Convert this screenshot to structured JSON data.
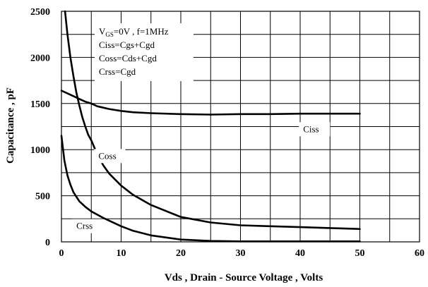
{
  "chart_data": {
    "type": "line",
    "xlabel": "Vds , Drain - Source Voltage , Volts",
    "ylabel": "Capacitance , pF",
    "xlim": [
      0,
      60
    ],
    "ylim": [
      0,
      2500
    ],
    "x_ticks": [
      "0",
      "10",
      "20",
      "30",
      "40",
      "50",
      "60"
    ],
    "y_ticks": [
      "0",
      "500",
      "1000",
      "1500",
      "2000",
      "2500"
    ],
    "grid": true,
    "annotations": {
      "line1_main": "V",
      "line1_sub": "GS",
      "line1_rest": "=0V , f=1MHz",
      "line2": "Ciss=Cgs+Cgd",
      "line3": "Coss=Cds+Cgd",
      "line4": "Crss=Cgd"
    },
    "series": [
      {
        "name": "Ciss",
        "x": [
          0,
          1,
          2,
          3,
          4,
          5,
          6,
          8,
          10,
          12,
          15,
          20,
          25,
          30,
          35,
          40,
          45,
          50
        ],
        "y": [
          1640,
          1610,
          1580,
          1550,
          1520,
          1500,
          1470,
          1440,
          1420,
          1405,
          1395,
          1385,
          1380,
          1385,
          1385,
          1390,
          1390,
          1390
        ]
      },
      {
        "name": "Coss",
        "x": [
          0.6,
          1,
          1.5,
          2,
          2.5,
          3,
          3.5,
          4,
          4.5,
          5,
          6,
          7,
          8,
          10,
          12,
          15,
          20,
          25,
          30,
          35,
          40,
          45,
          50
        ],
        "y": [
          2500,
          2250,
          2000,
          1800,
          1620,
          1480,
          1350,
          1250,
          1160,
          1100,
          950,
          830,
          740,
          610,
          510,
          400,
          270,
          210,
          180,
          170,
          160,
          150,
          140
        ]
      },
      {
        "name": "Crss",
        "x": [
          0,
          0.5,
          1,
          1.5,
          2,
          3,
          4,
          5,
          6,
          7,
          8,
          10,
          12,
          15,
          20,
          25,
          30,
          40,
          50
        ],
        "y": [
          1150,
          880,
          720,
          620,
          540,
          440,
          380,
          330,
          295,
          260,
          230,
          170,
          120,
          70,
          25,
          10,
          5,
          5,
          5
        ]
      }
    ],
    "series_labels": {
      "Ciss": {
        "x": 40.5,
        "y": 1190
      },
      "Coss": {
        "x": 6.2,
        "y": 900
      },
      "Crss": {
        "x": 2.5,
        "y": 140
      }
    }
  }
}
